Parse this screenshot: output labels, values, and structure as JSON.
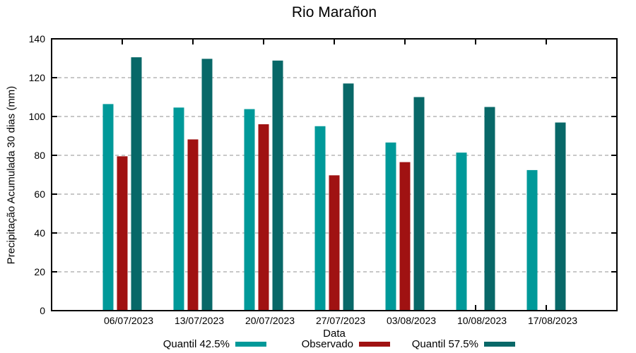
{
  "chart_data": {
    "type": "bar",
    "title": "Rio Marañon",
    "xlabel": "Data",
    "ylabel": "Precipitação Acumulada 30 dias (mm)",
    "ylim": [
      0,
      140
    ],
    "ytick_step": 20,
    "grid": "horizontal-dashed",
    "legend_position": "bottom",
    "categories": [
      "06/07/2023",
      "13/07/2023",
      "20/07/2023",
      "27/07/2023",
      "03/08/2023",
      "10/08/2023",
      "17/08/2023"
    ],
    "series": [
      {
        "name": "Quantil 42.5%",
        "color": "#009999",
        "values": [
          106.4,
          104.6,
          103.8,
          95.0,
          86.6,
          81.4,
          72.4
        ]
      },
      {
        "name": "Observado",
        "color": "#A01212",
        "values": [
          79.5,
          88.2,
          96.0,
          69.7,
          76.5,
          null,
          null
        ]
      },
      {
        "name": "Quantil 57.5%",
        "color": "#086868",
        "values": [
          130.5,
          129.7,
          128.8,
          117.0,
          110.0,
          104.9,
          96.9
        ]
      }
    ]
  },
  "colors": {
    "grid": "#909090",
    "axis": "#000000",
    "text": "#000000",
    "background": "#ffffff"
  }
}
